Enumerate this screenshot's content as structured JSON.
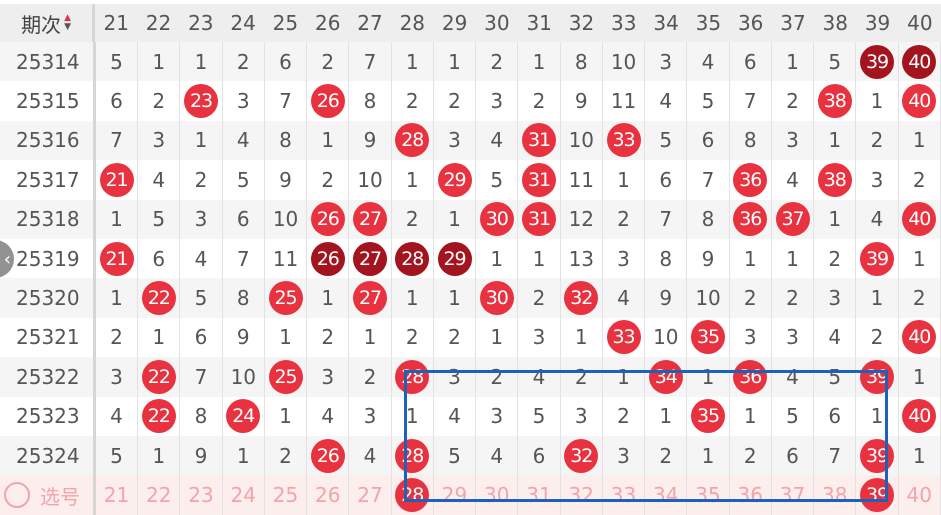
{
  "header": {
    "period_label": "期次",
    "columns": [
      21,
      22,
      23,
      24,
      25,
      26,
      27,
      28,
      29,
      30,
      31,
      32,
      33,
      34,
      35,
      36,
      37,
      38,
      39,
      40
    ]
  },
  "colors": {
    "ball": "#e8323f",
    "ball_dark": "#a3141f",
    "selection_box": "#1a63b8",
    "pick_row_bg": "#fdeeee"
  },
  "rows": [
    {
      "period": "25314",
      "values": [
        5,
        1,
        1,
        2,
        6,
        2,
        7,
        1,
        1,
        2,
        1,
        8,
        10,
        3,
        4,
        6,
        1,
        5,
        39,
        40
      ],
      "dark": [
        39,
        40
      ]
    },
    {
      "period": "25315",
      "values": [
        6,
        2,
        23,
        3,
        7,
        26,
        8,
        2,
        2,
        3,
        2,
        9,
        11,
        4,
        5,
        7,
        2,
        38,
        1,
        40
      ],
      "dark": []
    },
    {
      "period": "25316",
      "values": [
        7,
        3,
        1,
        4,
        8,
        1,
        9,
        28,
        3,
        4,
        31,
        10,
        33,
        5,
        6,
        8,
        3,
        1,
        2,
        1
      ],
      "dark": []
    },
    {
      "period": "25317",
      "values": [
        21,
        4,
        2,
        5,
        9,
        2,
        10,
        1,
        29,
        5,
        31,
        11,
        1,
        6,
        7,
        36,
        4,
        38,
        3,
        2
      ],
      "dark": []
    },
    {
      "period": "25318",
      "values": [
        1,
        5,
        3,
        6,
        10,
        26,
        27,
        2,
        1,
        30,
        31,
        12,
        2,
        7,
        8,
        36,
        37,
        1,
        4,
        40
      ],
      "dark": []
    },
    {
      "period": "25319",
      "values": [
        21,
        6,
        4,
        7,
        11,
        26,
        27,
        28,
        29,
        1,
        1,
        13,
        3,
        8,
        9,
        1,
        1,
        2,
        39,
        1
      ],
      "dark": [
        26,
        27,
        28,
        29
      ]
    },
    {
      "period": "25320",
      "values": [
        1,
        22,
        5,
        8,
        25,
        1,
        27,
        1,
        1,
        30,
        2,
        32,
        4,
        9,
        10,
        2,
        2,
        3,
        1,
        2
      ],
      "dark": []
    },
    {
      "period": "25321",
      "values": [
        2,
        1,
        6,
        9,
        1,
        2,
        1,
        2,
        2,
        1,
        3,
        1,
        33,
        10,
        35,
        3,
        3,
        4,
        2,
        40
      ],
      "dark": []
    },
    {
      "period": "25322",
      "values": [
        3,
        22,
        7,
        10,
        25,
        3,
        2,
        28,
        3,
        2,
        4,
        2,
        1,
        34,
        1,
        36,
        4,
        5,
        39,
        1
      ],
      "dark": []
    },
    {
      "period": "25323",
      "values": [
        4,
        22,
        8,
        24,
        1,
        4,
        3,
        1,
        4,
        3,
        5,
        3,
        2,
        1,
        35,
        1,
        5,
        6,
        1,
        40
      ],
      "dark": []
    },
    {
      "period": "25324",
      "values": [
        5,
        1,
        9,
        1,
        2,
        26,
        4,
        28,
        5,
        4,
        6,
        32,
        3,
        2,
        1,
        2,
        6,
        7,
        39,
        1
      ],
      "dark": []
    }
  ],
  "pick_row": {
    "label": "选号",
    "values": [
      21,
      22,
      23,
      24,
      25,
      26,
      27,
      28,
      29,
      30,
      31,
      32,
      33,
      34,
      35,
      36,
      37,
      38,
      39,
      40
    ],
    "selected": [
      28,
      39
    ]
  },
  "back_button": {
    "icon": "chevron-left-icon",
    "glyph": "‹"
  }
}
